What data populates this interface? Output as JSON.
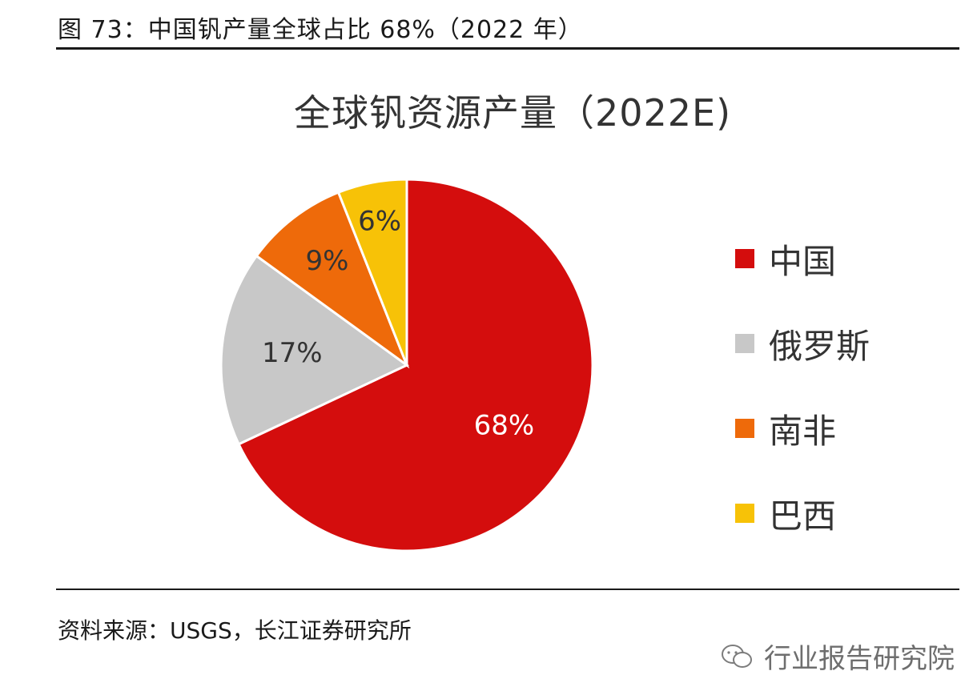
{
  "figure": {
    "title": "图 73：中国钒产量全球占比 68%（2022 年）"
  },
  "chart_data": {
    "type": "pie",
    "title": "全球钒资源产量（2022E)",
    "categories": [
      "中国",
      "俄罗斯",
      "南非",
      "巴西"
    ],
    "values": [
      68,
      17,
      9,
      6
    ],
    "labels": [
      "68%",
      "17%",
      "9%",
      "6%"
    ],
    "colors": [
      "#d40d0d",
      "#c8c8c8",
      "#ee6a0a",
      "#f7c207"
    ],
    "label_colors": [
      "#ffffff",
      "#333333",
      "#333333",
      "#333333"
    ],
    "legend_position": "right"
  },
  "source": {
    "text": "资料来源：USGS，长江证券研究所"
  },
  "watermark": {
    "text": "行业报告研究院",
    "icon": "wechat-icon"
  }
}
